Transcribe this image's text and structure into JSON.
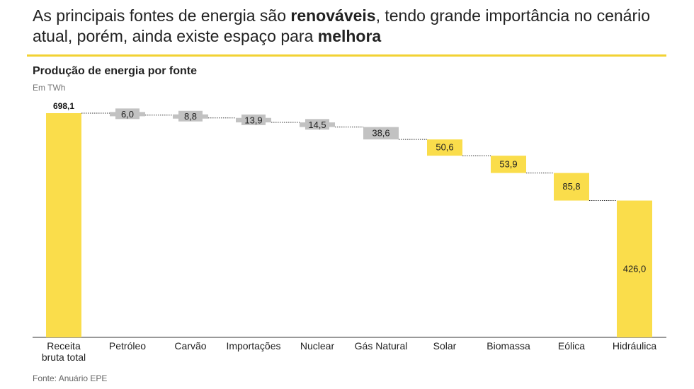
{
  "headline": {
    "part1": "As principais fontes de energia são ",
    "bold1": "renováveis",
    "part2": ", tendo grande importância no cenário atual, porém, ainda existe espaço para ",
    "bold2": "melhora"
  },
  "colors": {
    "renewable": "#fadd4b",
    "fossil": "#c2c2c2",
    "rule": "#f2d233",
    "axis": "#333333",
    "connector": "#333333"
  },
  "chart_data": {
    "type": "waterfall",
    "title": "Produção de energia por fonte",
    "unit": "Em TWh",
    "total": {
      "category": "Receita\nbruta total",
      "value": 698.1,
      "label": "698,1"
    },
    "categories": [
      "Petróleo",
      "Carvão",
      "Importações",
      "Nuclear",
      "Gás Natural",
      "Solar",
      "Biomassa",
      "Eólica",
      "Hidráulica"
    ],
    "values": [
      6.0,
      8.8,
      13.9,
      14.5,
      38.6,
      50.6,
      53.9,
      85.8,
      426.0
    ],
    "labels": [
      "6,0",
      "8,8",
      "13,9",
      "14,5",
      "38,6",
      "50,6",
      "53,9",
      "85,8",
      "426,0"
    ],
    "kind": [
      "fossil",
      "fossil",
      "fossil",
      "fossil",
      "fossil",
      "renewable",
      "renewable",
      "renewable",
      "renewable"
    ],
    "ylim": [
      0,
      698.1
    ]
  },
  "source": "Fonte: Anuário EPE"
}
